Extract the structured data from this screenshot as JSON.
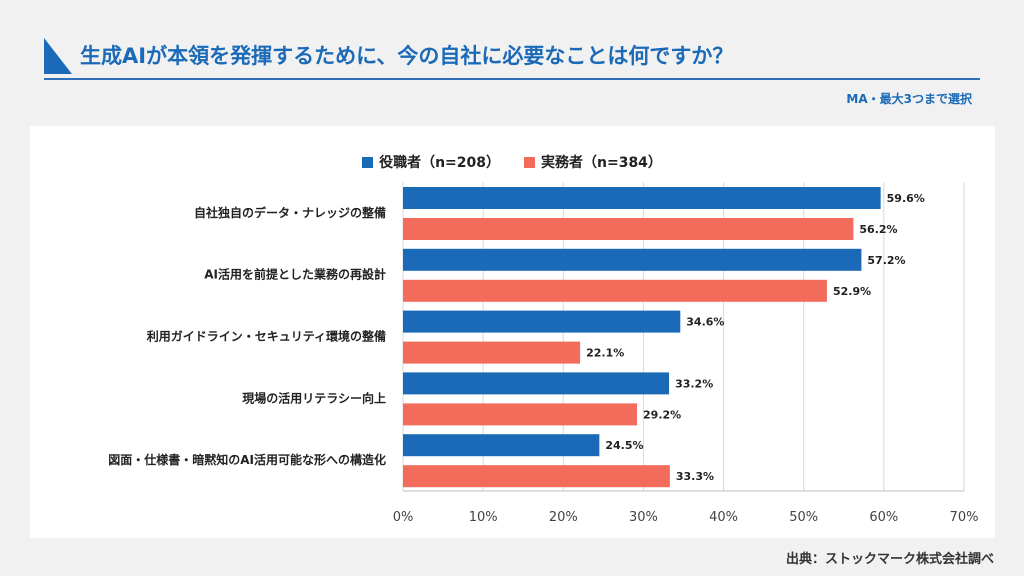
{
  "header": {
    "title": "生成AIが本領を発揮するために、今の自社に必要なことは何ですか？",
    "note": "MA・最大3つまで選択"
  },
  "footer": {
    "source": "出典：ストックマーク株式会社調べ"
  },
  "colors": {
    "series_1": "#1b6ab8",
    "series_2": "#f26b5b",
    "grid": "#d9d9d9",
    "title": "#1b6ab8"
  },
  "chart_data": {
    "type": "bar",
    "orientation": "horizontal",
    "categories": [
      "自社独自のデータ・ナレッジの整備",
      "AI活用を前提とした業務の再設計",
      "利用ガイドライン・セキュリティ環境の整備",
      "現場の活用リテラシー向上",
      "図面・仕様書・暗黙知のAI活用可能な形への構造化"
    ],
    "series": [
      {
        "name": "役職者（n=208）",
        "values": [
          59.6,
          57.2,
          34.6,
          33.2,
          24.5
        ]
      },
      {
        "name": "実務者（n=384）",
        "values": [
          56.2,
          52.9,
          22.1,
          29.2,
          33.3
        ]
      }
    ],
    "data_labels": [
      [
        "59.6%",
        "57.2%",
        "34.6%",
        "33.2%",
        "24.5%"
      ],
      [
        "56.2%",
        "52.9%",
        "22.1%",
        "29.2%",
        "33.3%"
      ]
    ],
    "x_ticks": [
      "0%",
      "10%",
      "20%",
      "30%",
      "40%",
      "50%",
      "60%",
      "70%"
    ],
    "xlim": [
      0,
      70
    ],
    "grid": true,
    "legend_position": "top-center"
  }
}
